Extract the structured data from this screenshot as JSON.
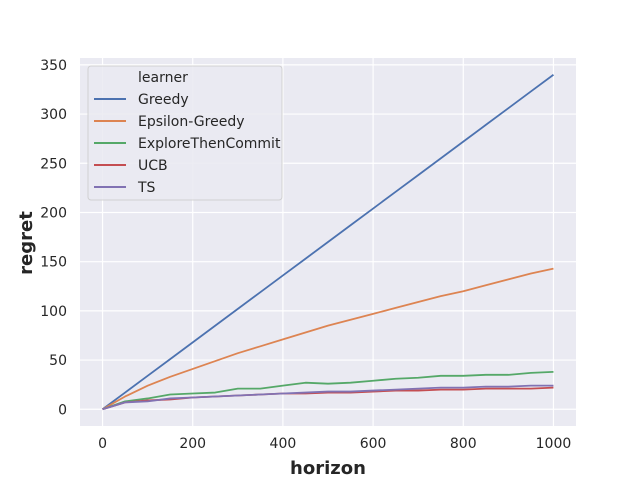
{
  "chart_data": {
    "type": "line",
    "xlabel": "horizon",
    "ylabel": "regret",
    "xlim": [
      -50,
      1050
    ],
    "ylim": [
      -17,
      357
    ],
    "xticks": [
      0,
      200,
      400,
      600,
      800,
      1000
    ],
    "yticks": [
      0,
      50,
      100,
      150,
      200,
      250,
      300,
      350
    ],
    "grid": true,
    "legend": {
      "title": "learner",
      "placement": "top-left"
    },
    "x": [
      0,
      50,
      100,
      150,
      200,
      250,
      300,
      350,
      400,
      450,
      500,
      550,
      600,
      650,
      700,
      750,
      800,
      850,
      900,
      950,
      1000
    ],
    "series": [
      {
        "name": "Greedy",
        "color": "#4c72b0",
        "values": [
          0,
          17,
          34,
          51,
          68,
          85,
          102,
          119,
          136,
          153,
          170,
          187,
          204,
          221,
          238,
          255,
          272,
          289,
          306,
          323,
          340
        ]
      },
      {
        "name": "Epsilon-Greedy",
        "color": "#dd8452",
        "values": [
          0,
          13,
          24,
          33,
          41,
          49,
          57,
          64,
          71,
          78,
          85,
          91,
          97,
          103,
          109,
          115,
          120,
          126,
          132,
          138,
          143
        ]
      },
      {
        "name": "ExploreThenCommit",
        "color": "#55a868",
        "values": [
          0,
          8,
          11,
          15,
          16,
          17,
          21,
          21,
          24,
          27,
          26,
          27,
          29,
          31,
          32,
          34,
          34,
          35,
          35,
          37,
          38
        ]
      },
      {
        "name": "UCB",
        "color": "#c44e52",
        "values": [
          0,
          7,
          9,
          10,
          12,
          13,
          14,
          15,
          16,
          16,
          17,
          17,
          18,
          19,
          19,
          20,
          20,
          21,
          21,
          21,
          22
        ]
      },
      {
        "name": "TS",
        "color": "#8172b3",
        "values": [
          0,
          7,
          8,
          11,
          12,
          13,
          14,
          15,
          16,
          17,
          18,
          18,
          19,
          20,
          21,
          22,
          22,
          23,
          23,
          24,
          24
        ]
      }
    ]
  }
}
